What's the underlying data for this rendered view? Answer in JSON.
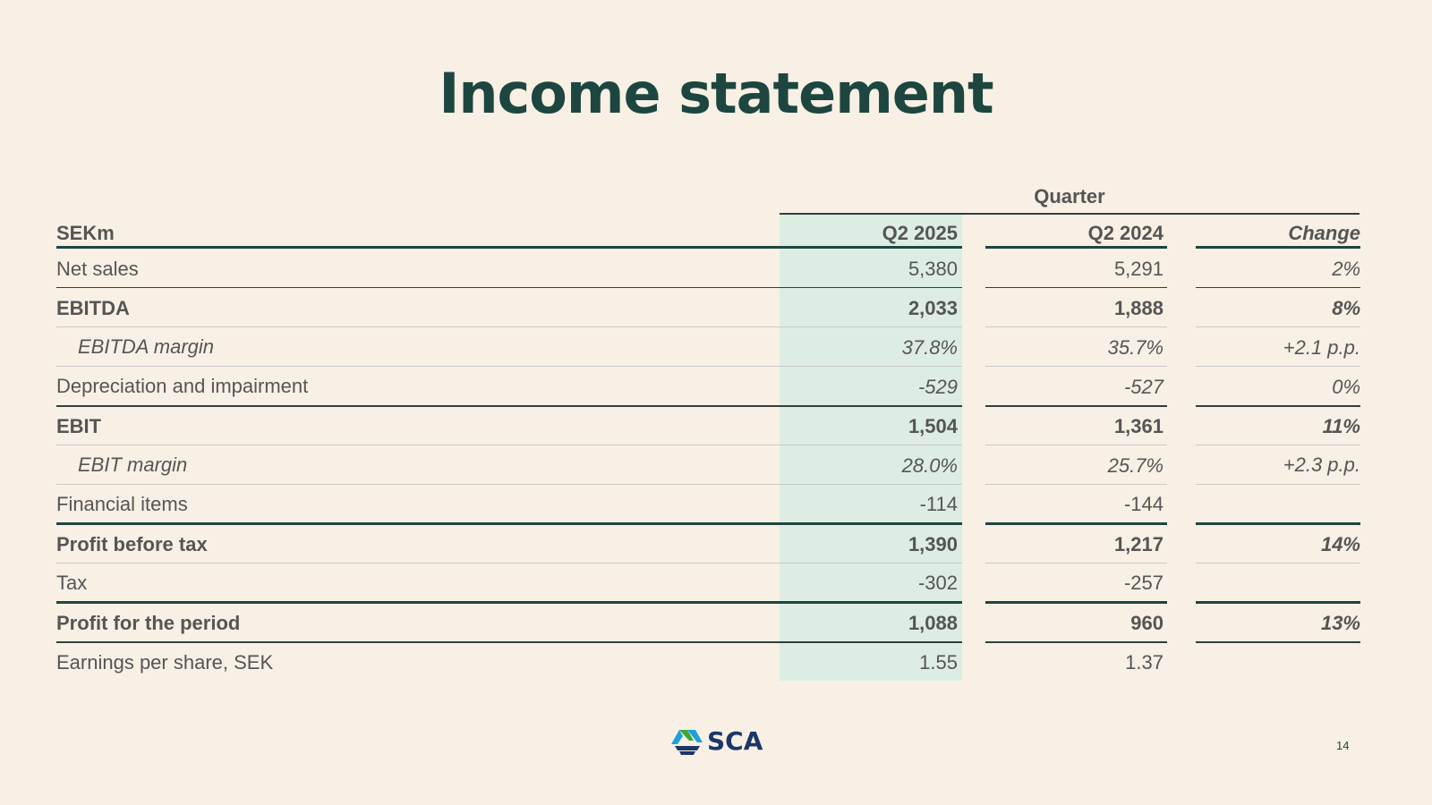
{
  "title": "Income statement",
  "table": {
    "group_header": "Quarter",
    "headers": {
      "label": "SEKm",
      "col1": "Q2 2025",
      "col2": "Q2 2024",
      "col3": "Change"
    },
    "rows": [
      {
        "label": "Net sales",
        "col1": "5,380",
        "col2": "5,291",
        "col3": "2%"
      },
      {
        "label": "EBITDA",
        "col1": "2,033",
        "col2": "1,888",
        "col3": "8%"
      },
      {
        "label": "EBITDA margin",
        "col1": "37.8%",
        "col2": "35.7%",
        "col3": "+2.1 p.p."
      },
      {
        "label": "Depreciation and impairment",
        "col1": "-529",
        "col2": "-527",
        "col3": "0%"
      },
      {
        "label": "EBIT",
        "col1": "1,504",
        "col2": "1,361",
        "col3": "11%"
      },
      {
        "label": "EBIT margin",
        "col1": "28.0%",
        "col2": "25.7%",
        "col3": "+2.3 p.p."
      },
      {
        "label": "Financial items",
        "col1": "-114",
        "col2": "-144",
        "col3": ""
      },
      {
        "label": "Profit before tax",
        "col1": "1,390",
        "col2": "1,217",
        "col3": "14%"
      },
      {
        "label": "Tax",
        "col1": "-302",
        "col2": "-257",
        "col3": ""
      },
      {
        "label": "Profit for the period",
        "col1": "1,088",
        "col2": "960",
        "col3": "13%"
      },
      {
        "label": "Earnings per share, SEK",
        "col1": "1.55",
        "col2": "1.37",
        "col3": ""
      }
    ]
  },
  "footer": {
    "logo_text": "SCA",
    "page_number": "14"
  },
  "colors": {
    "background": "#f8f0e4",
    "title": "#1d4640",
    "highlight_column": "#ddede3",
    "logo_blue": "#1b3768",
    "logo_green": "#39a935",
    "logo_cyan": "#1ea0dc"
  }
}
